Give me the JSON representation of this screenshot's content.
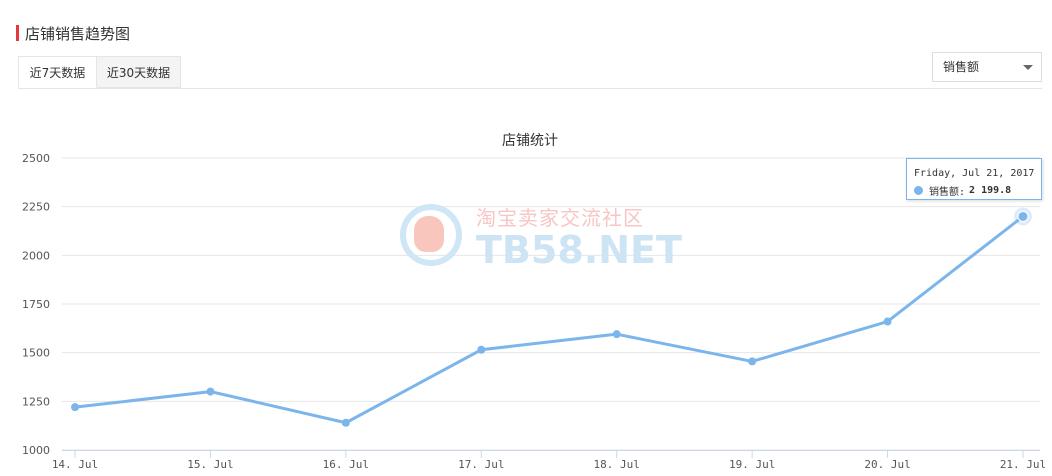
{
  "header": {
    "title": "店铺销售趋势图"
  },
  "tabs": [
    {
      "label": "近7天数据",
      "active": true
    },
    {
      "label": "近30天数据",
      "active": false
    }
  ],
  "metric_select": {
    "selected": "销售额"
  },
  "watermark": {
    "cn": "淘宝卖家交流社区",
    "en": "TB58.NET"
  },
  "tooltip": {
    "date": "Friday, Jul 21, 2017",
    "series": "销售额:",
    "value": "2 199.8"
  },
  "colors": {
    "series": "#7cb5ec",
    "accent": "#e4393c",
    "grid": "#e6e6e6"
  },
  "chart_data": {
    "type": "line",
    "title": "店铺统计",
    "categories": [
      "14. Jul",
      "15. Jul",
      "16. Jul",
      "17. Jul",
      "18. Jul",
      "19. Jul",
      "20. Jul",
      "21. Jul"
    ],
    "series": [
      {
        "name": "销售额",
        "values": [
          1220,
          1300,
          1140,
          1515,
          1595,
          1455,
          1660,
          2199.8
        ]
      }
    ],
    "y_ticks": [
      "1000",
      "1250",
      "1500",
      "1750",
      "2000",
      "2250",
      "2500"
    ],
    "ylim": [
      1000,
      2500
    ],
    "xlabel": "",
    "ylabel": "",
    "grid": true
  }
}
